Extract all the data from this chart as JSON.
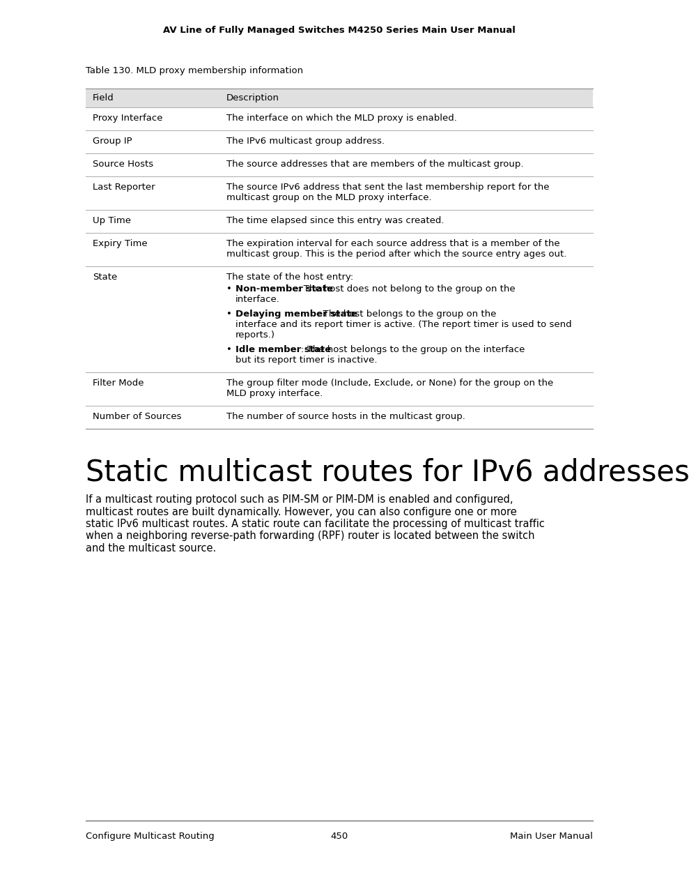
{
  "header_title": "AV Line of Fully Managed Switches M4250 Series Main User Manual",
  "table_caption": "Table 130. MLD proxy membership information",
  "table_header": [
    "Field",
    "Description"
  ],
  "table_rows": [
    {
      "field": "Proxy Interface",
      "desc_lines": [
        "The interface on which the MLD proxy is enabled."
      ],
      "bullets": []
    },
    {
      "field": "Group IP",
      "desc_lines": [
        "The IPv6 multicast group address."
      ],
      "bullets": []
    },
    {
      "field": "Source Hosts",
      "desc_lines": [
        "The source addresses that are members of the multicast group."
      ],
      "bullets": []
    },
    {
      "field": "Last Reporter",
      "desc_lines": [
        "The source IPv6 address that sent the last membership report for the",
        "multicast group on the MLD proxy interface."
      ],
      "bullets": []
    },
    {
      "field": "Up Time",
      "desc_lines": [
        "The time elapsed since this entry was created."
      ],
      "bullets": []
    },
    {
      "field": "Expiry Time",
      "desc_lines": [
        "The expiration interval for each source address that is a member of the",
        "multicast group. This is the period after which the source entry ages out."
      ],
      "bullets": []
    },
    {
      "field": "State",
      "desc_lines": [
        "The state of the host entry:"
      ],
      "bullets": [
        {
          "bold": "Non-member state",
          "rest": ": The host does not belong to the group on the",
          "continuation_lines": [
            "interface."
          ]
        },
        {
          "bold": "Delaying member state",
          "rest": ": The host belongs to the group on the",
          "continuation_lines": [
            "interface and its report timer is active. (The report timer is used to send",
            "reports.)"
          ]
        },
        {
          "bold": "Idle member state",
          "rest": ": The host belongs to the group on the interface",
          "continuation_lines": [
            "but its report timer is inactive."
          ]
        }
      ]
    },
    {
      "field": "Filter Mode",
      "desc_lines": [
        "The group filter mode (Include, Exclude, or None) for the group on the",
        "MLD proxy interface."
      ],
      "bullets": []
    },
    {
      "field": "Number of Sources",
      "desc_lines": [
        "The number of source hosts in the multicast group."
      ],
      "bullets": []
    }
  ],
  "section_title": "Static multicast routes for IPv6 addresses",
  "section_body_lines": [
    "If a multicast routing protocol such as PIM-SM or PIM-DM is enabled and configured,",
    "multicast routes are built dynamically. However, you can also configure one or more",
    "static IPv6 multicast routes. A static route can facilitate the processing of multicast traffic",
    "when a neighboring reverse-path forwarding (RPF) router is located between the switch",
    "and the multicast source."
  ],
  "footer_left": "Configure Multicast Routing",
  "footer_center": "450",
  "footer_right": "Main User Manual",
  "bg_color": "#ffffff",
  "header_bg": "#e8e8e8"
}
